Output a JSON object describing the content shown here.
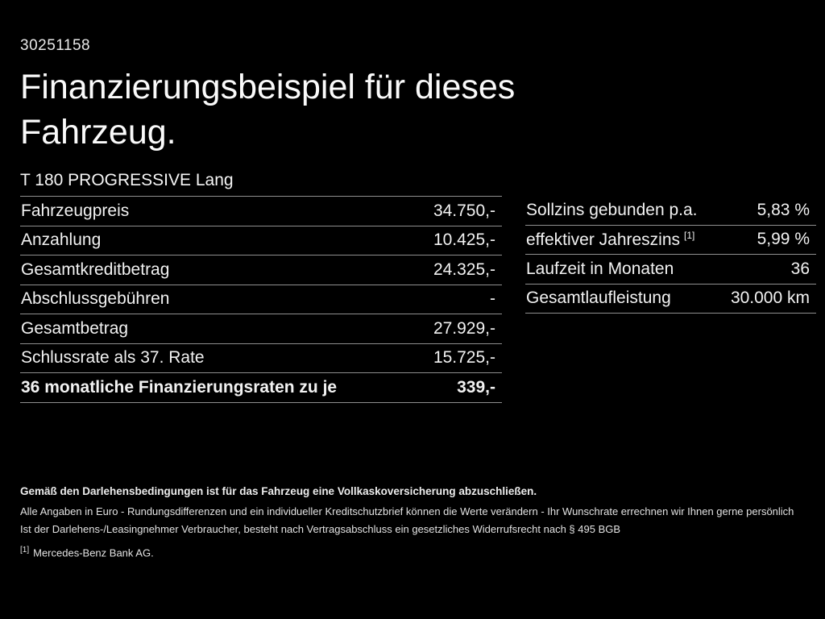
{
  "page": {
    "doc_id": "30251158",
    "title": "Finanzierungsbeispiel für dieses Fahrzeug.",
    "model": "T 180 PROGRESSIVE Lang"
  },
  "left_table": {
    "rows": [
      {
        "label": "Fahrzeugpreis",
        "value": "34.750,-"
      },
      {
        "label": "Anzahlung",
        "value": "10.425,-"
      },
      {
        "label": "Gesamtkreditbetrag",
        "value": "24.325,-"
      },
      {
        "label": "Abschlussgebühren",
        "value": "-"
      },
      {
        "label": "Gesamtbetrag",
        "value": "27.929,-"
      },
      {
        "label": "Schlussrate als 37. Rate",
        "value": "15.725,-"
      },
      {
        "label": "36 monatliche Finanzierungsraten zu je",
        "value": "339,-"
      }
    ]
  },
  "right_table": {
    "rows": [
      {
        "label": "Sollzins gebunden p.a.",
        "value": "5,83 %"
      },
      {
        "label": "effektiver Jahreszins",
        "sup": "[1]",
        "value": "5,99 %"
      },
      {
        "label": "Laufzeit in Monaten",
        "value": "36"
      },
      {
        "label": "Gesamtlaufleistung",
        "value": "30.000 km"
      }
    ]
  },
  "footer": {
    "line1": "Gemäß den Darlehensbedingungen ist für das Fahrzeug eine Vollkaskoversicherung abzuschließen.",
    "line2": "Alle Angaben in Euro - Rundungsdifferenzen und ein individueller Kreditschutzbrief können die Werte verändern - Ihr Wunschrate errechnen wir Ihnen gerne persönlich",
    "line3": "Ist der Darlehens-/Leasingnehmer Verbraucher, besteht nach Vertragsabschluss ein gesetzliches Widerrufsrecht nach § 495 BGB",
    "note_ref": "[1]",
    "note_text": "Mercedes-Benz Bank AG."
  },
  "colors": {
    "background": "#000000",
    "text": "#f2f2f2",
    "divider": "#8f8f8f"
  }
}
